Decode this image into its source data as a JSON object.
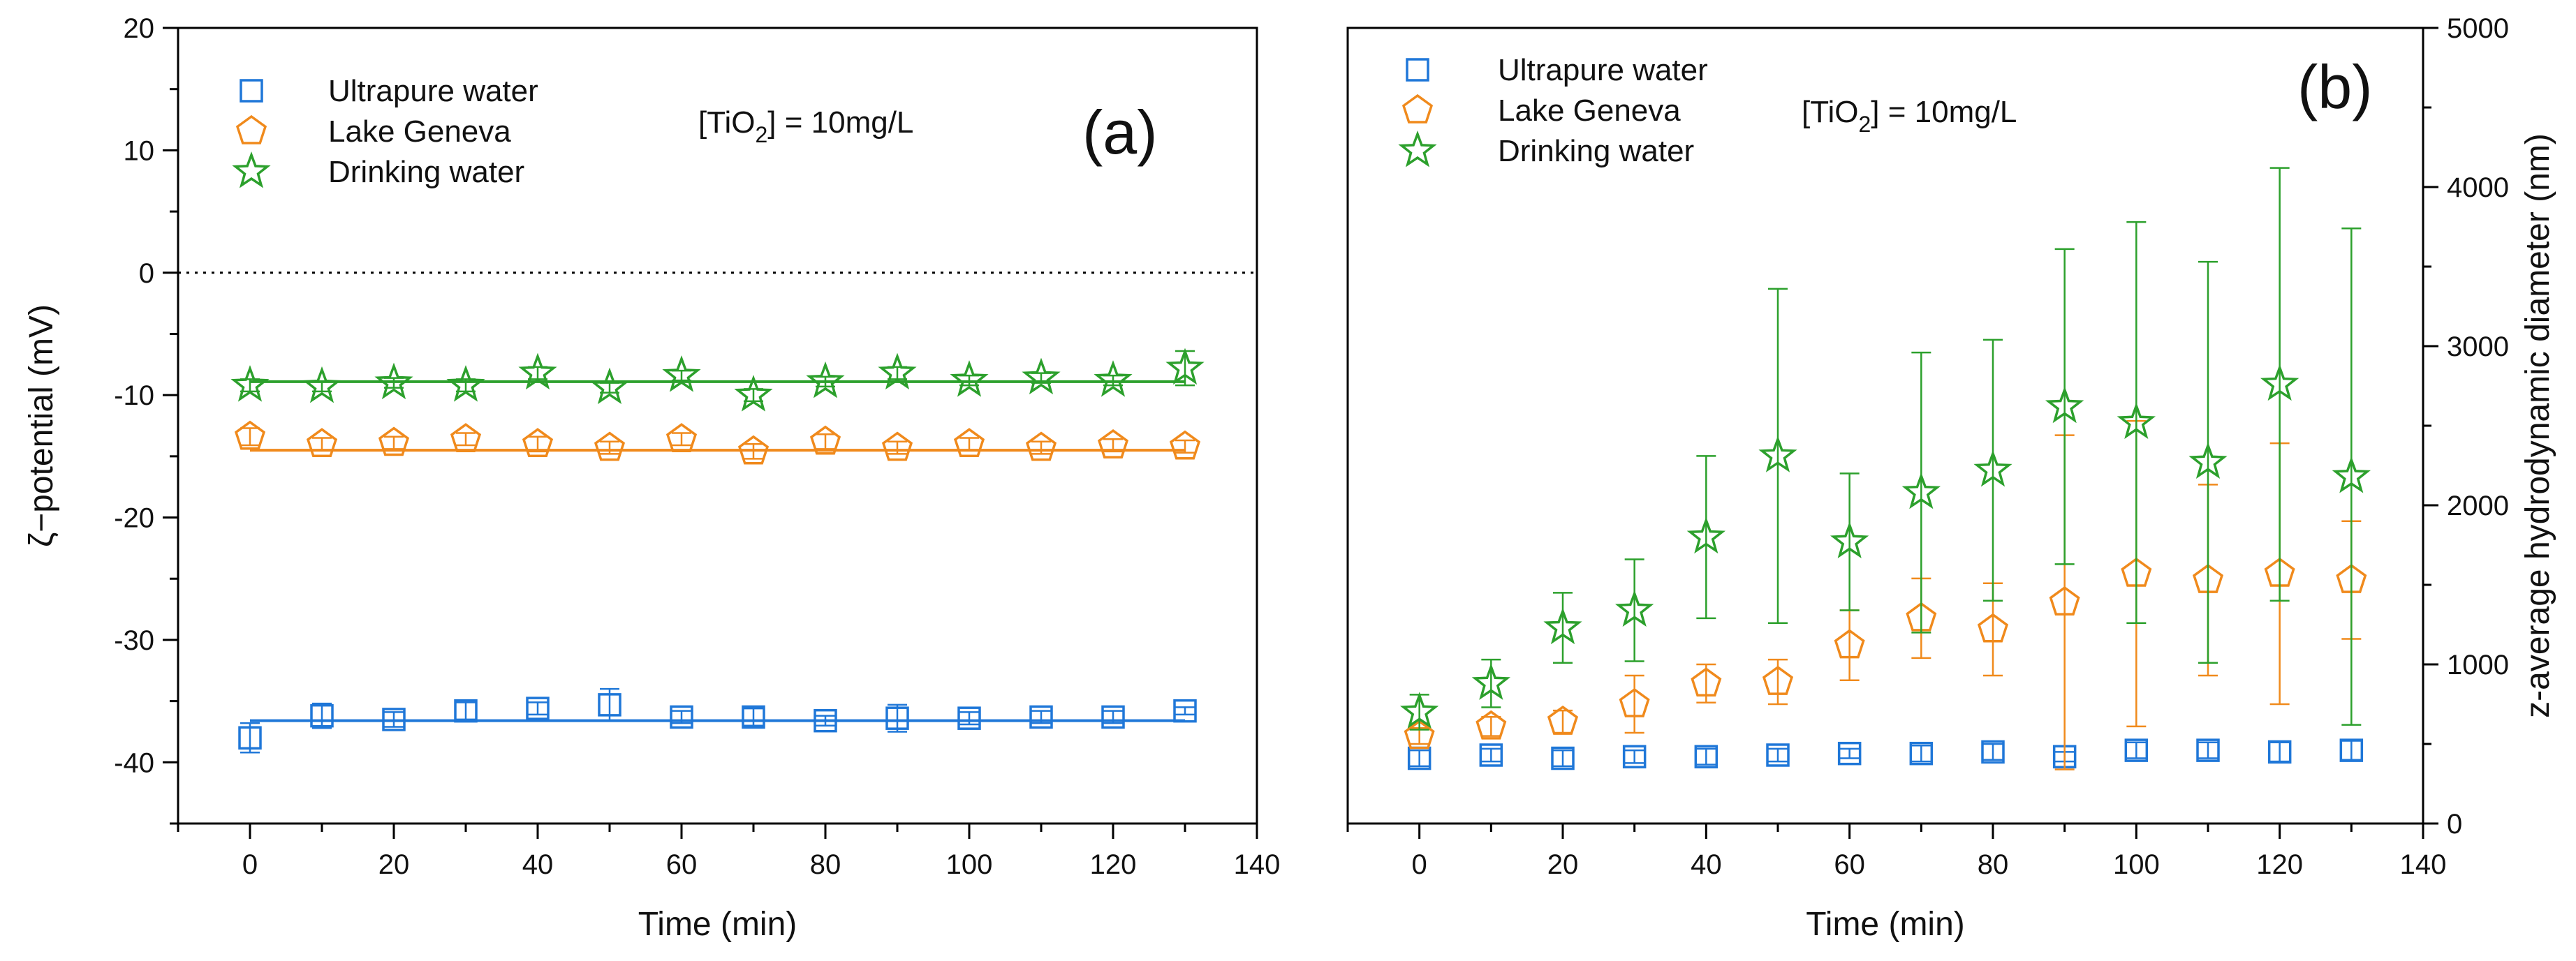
{
  "chart_data": [
    {
      "panel": "(a)",
      "type": "scatter",
      "xlabel": "Time (min)",
      "ylabel": "ζ−potential (mV)",
      "xlim": [
        -10,
        140
      ],
      "ylim": [
        -45,
        20
      ],
      "xticks": [
        0,
        20,
        40,
        60,
        80,
        100,
        120,
        140
      ],
      "yticks": [
        20,
        10,
        0,
        -10,
        -20,
        -30,
        -40
      ],
      "annotation": {
        "prefix": "[TiO",
        "sub": "2",
        "suffix": "] = 10mg/L"
      },
      "reference_line_y": 0,
      "legend_position": "top-left",
      "series": [
        {
          "name": "Ultrapure water",
          "marker": "square",
          "color": "#1f77d8",
          "x": [
            0,
            10,
            20,
            30,
            40,
            50,
            60,
            70,
            80,
            90,
            100,
            110,
            120,
            130
          ],
          "y": [
            -38.0,
            -36.2,
            -36.5,
            -35.8,
            -35.6,
            -35.3,
            -36.3,
            -36.3,
            -36.6,
            -36.4,
            -36.4,
            -36.3,
            -36.3,
            -35.8
          ],
          "err": [
            1.2,
            1.0,
            0.6,
            0.7,
            0.5,
            1.3,
            0.5,
            0.7,
            0.4,
            1.1,
            0.5,
            0.5,
            0.5,
            0.3
          ],
          "fit_y": -36.6
        },
        {
          "name": "Lake Geneva",
          "marker": "pentagon",
          "color": "#f08a1c",
          "x": [
            0,
            10,
            20,
            30,
            40,
            50,
            60,
            70,
            80,
            90,
            100,
            110,
            120,
            130
          ],
          "y": [
            -13.4,
            -14.0,
            -13.9,
            -13.6,
            -14.0,
            -14.3,
            -13.6,
            -14.6,
            -13.8,
            -14.3,
            -14.0,
            -14.3,
            -14.1,
            -14.2
          ],
          "err": [
            0.7,
            0.5,
            0.5,
            0.5,
            0.6,
            0.5,
            0.5,
            0.6,
            0.6,
            0.5,
            0.5,
            0.5,
            0.5,
            0.5
          ],
          "fit_y": -14.5
        },
        {
          "name": "Drinking water",
          "marker": "star",
          "color": "#2ca02c",
          "x": [
            0,
            10,
            20,
            30,
            40,
            50,
            60,
            70,
            80,
            90,
            100,
            110,
            120,
            130
          ],
          "y": [
            -9.2,
            -9.3,
            -9.0,
            -9.2,
            -8.2,
            -9.4,
            -8.4,
            -10.0,
            -8.9,
            -8.2,
            -8.8,
            -8.6,
            -8.8,
            -7.8
          ],
          "err": [
            0.5,
            0.4,
            0.4,
            0.5,
            0.5,
            0.4,
            0.4,
            0.5,
            0.4,
            0.5,
            0.4,
            0.4,
            0.4,
            1.4
          ],
          "fit_y": -8.9
        }
      ]
    },
    {
      "panel": "(b)",
      "type": "scatter",
      "xlabel": "Time (min)",
      "ylabel": "z-average hydrodynamic diameter (nm)",
      "ylabel_side": "right",
      "xlim": [
        -10,
        140
      ],
      "ylim": [
        0,
        5000
      ],
      "xticks": [
        0,
        20,
        40,
        60,
        80,
        100,
        120,
        140
      ],
      "yticks": [
        0,
        1000,
        2000,
        3000,
        4000,
        5000
      ],
      "annotation": {
        "prefix": "[TiO",
        "sub": "2",
        "suffix": "] = 10mg/L"
      },
      "legend_position": "top-left",
      "series": [
        {
          "name": "Ultrapure water",
          "marker": "square",
          "color": "#1f77d8",
          "x": [
            0,
            10,
            20,
            30,
            40,
            50,
            60,
            70,
            80,
            90,
            100,
            110,
            120,
            130
          ],
          "y": [
            410,
            430,
            410,
            420,
            420,
            430,
            440,
            440,
            450,
            420,
            460,
            460,
            450,
            460
          ],
          "err": [
            50,
            40,
            50,
            40,
            50,
            40,
            30,
            50,
            50,
            30,
            50,
            50,
            60,
            60
          ]
        },
        {
          "name": "Lake Geneva",
          "marker": "pentagon",
          "color": "#f08a1c",
          "x": [
            0,
            10,
            20,
            30,
            40,
            50,
            60,
            70,
            80,
            90,
            100,
            110,
            120,
            130
          ],
          "y": [
            550,
            610,
            640,
            750,
            880,
            890,
            1120,
            1290,
            1220,
            1390,
            1570,
            1530,
            1570,
            1530
          ],
          "err": [
            50,
            60,
            70,
            180,
            120,
            140,
            220,
            250,
            290,
            1050,
            960,
            600,
            820,
            370
          ]
        },
        {
          "name": "Drinking water",
          "marker": "star",
          "color": "#2ca02c",
          "x": [
            0,
            10,
            20,
            30,
            40,
            50,
            60,
            70,
            80,
            90,
            100,
            110,
            120,
            130
          ],
          "y": [
            700,
            880,
            1230,
            1340,
            1800,
            2310,
            1770,
            2080,
            2220,
            2620,
            2520,
            2270,
            2760,
            2180
          ],
          "err": [
            110,
            150,
            220,
            320,
            510,
            1050,
            430,
            880,
            820,
            990,
            1260,
            1260,
            1360,
            1560
          ]
        }
      ]
    }
  ]
}
